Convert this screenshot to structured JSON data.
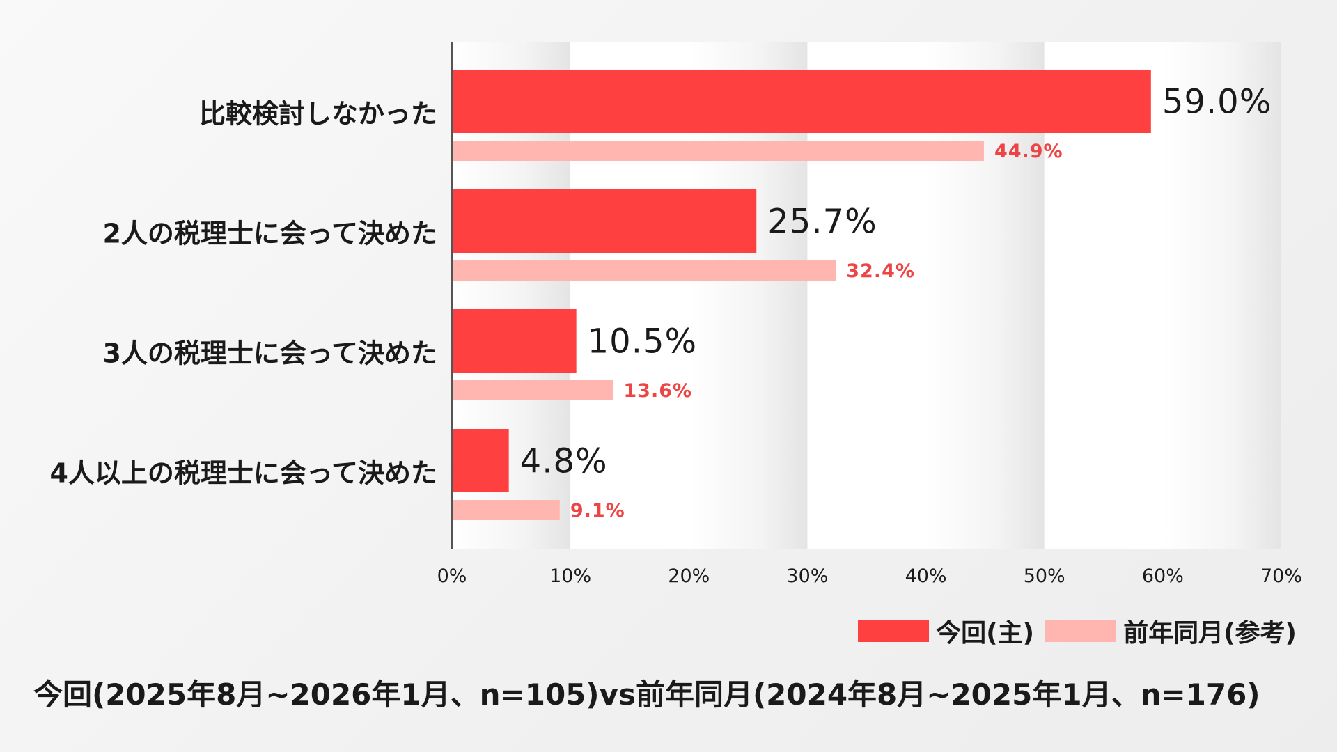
{
  "chart_data": {
    "type": "bar",
    "orientation": "horizontal",
    "categories": [
      "比較検討しなかった",
      "2人の税理士に会って決めた",
      "3人の税理士に会って決めた",
      "4人以上の税理士に会って決めた"
    ],
    "series": [
      {
        "name": "今回(主)",
        "values": [
          59.0,
          25.7,
          10.5,
          4.8
        ],
        "labels": [
          "59.0%",
          "25.7%",
          "10.5%",
          "4.8%"
        ],
        "color": "#ff4040"
      },
      {
        "name": "前年同月(参考)",
        "values": [
          44.9,
          32.4,
          13.6,
          9.1
        ],
        "labels": [
          "44.9%",
          "32.4%",
          "13.6%",
          "9.1%"
        ],
        "color": "#ffb6b0"
      }
    ],
    "xlim": [
      0,
      70
    ],
    "xticks": [
      0,
      10,
      20,
      30,
      40,
      50,
      60,
      70
    ],
    "xtick_labels": [
      "0%",
      "10%",
      "20%",
      "30%",
      "40%",
      "50%",
      "60%",
      "70%"
    ],
    "legend_position": "bottom-right",
    "data_label_color": "#ee4444"
  },
  "footnote": "今回(2025年8月~2026年1月、n=105)vs前年同月(2024年8月~2025年1月、n=176)"
}
